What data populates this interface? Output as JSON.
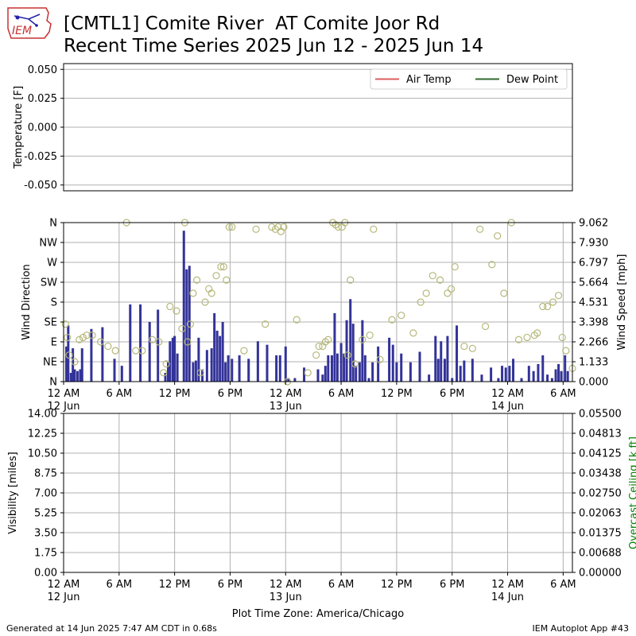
{
  "header": {
    "title_line1": "[CMTL1] Comite River  AT Comite Joor Rd",
    "title_line2": "Recent Time Series 2025 Jun 12 - 2025 Jun 14",
    "logo_text": "IEM"
  },
  "footer": {
    "generated": "Generated at 14 Jun 2025 7:47 AM CDT in 0.68s",
    "app": "IEM Autoplot App #43",
    "timezone": "Plot Time Zone: America/Chicago"
  },
  "colors": {
    "air_temp": "#d95f5f",
    "dew_point": "#2f6b2f",
    "wind_bar": "#333399",
    "wind_dir_marker": "#b5b87a",
    "ceiling_axis": "#008000",
    "grid": "#b0b0b0"
  },
  "chart_data": [
    {
      "type": "line",
      "panel": "temperature",
      "ylabel": "Temperature [F]",
      "ylim": [
        -0.055,
        0.055
      ],
      "yticks": [
        "-0.050",
        "-0.025",
        "0.000",
        "0.025",
        "0.050"
      ],
      "yticks_values": [
        -0.05,
        -0.025,
        0,
        0.025,
        0.05
      ],
      "grid": true,
      "legend": "top-right",
      "series": [
        {
          "name": "Air Temp",
          "values": []
        },
        {
          "name": "Dew Point",
          "values": []
        }
      ]
    },
    {
      "type": "bar",
      "panel": "wind",
      "ylabel": "Wind Direction",
      "y2label": "Wind Speed [mph]",
      "xlim_hours": [
        0,
        55
      ],
      "ylim_left_deg": [
        0,
        360
      ],
      "ylim_right_mph": [
        0,
        9.062
      ],
      "yticks_left": [
        "N",
        "NE",
        "E",
        "SE",
        "S",
        "SW",
        "W",
        "NW",
        "N"
      ],
      "yticks_right": [
        "0.000",
        "1.133",
        "2.266",
        "3.398",
        "4.531",
        "5.664",
        "6.797",
        "7.930",
        "9.062"
      ],
      "grid": true,
      "xticks_hours": [
        0,
        6,
        12,
        18,
        24,
        30,
        36,
        42,
        48,
        54
      ],
      "xtick_labels": [
        "12 AM",
        "6 AM",
        "12 PM",
        "6 PM",
        "12 AM",
        "6 AM",
        "12 PM",
        "6 PM",
        "12 AM",
        "6 AM"
      ],
      "xtick_sublabels": [
        "12 Jun",
        "",
        "",
        "",
        "13 Jun",
        "",
        "",
        "",
        "14 Jun",
        ""
      ],
      "wind_speed": {
        "hours": [
          0.3,
          0.5,
          0.8,
          1.0,
          1.2,
          1.5,
          1.8,
          2.0,
          3.0,
          4.2,
          5.5,
          6.3,
          7.2,
          8.3,
          9.3,
          10.2,
          11.0,
          11.3,
          11.5,
          11.8,
          12.0,
          12.3,
          13.0,
          13.3,
          13.6,
          14.0,
          14.3,
          14.6,
          15.0,
          15.5,
          16.0,
          16.3,
          16.6,
          16.9,
          17.2,
          17.5,
          17.8,
          18.2,
          19.0,
          20.0,
          21.0,
          22.0,
          23.0,
          23.4,
          24.0,
          24.3,
          25.0,
          26.0,
          27.5,
          28.0,
          28.3,
          28.6,
          29.0,
          29.3,
          29.6,
          30.0,
          30.3,
          30.6,
          31.0,
          31.3,
          31.6,
          32.0,
          32.3,
          32.6,
          33.0,
          33.4,
          34.0,
          35.2,
          35.6,
          36.0,
          36.5,
          37.5,
          38.5,
          39.5,
          40.2,
          40.5,
          40.8,
          41.2,
          41.5,
          42.0,
          42.5,
          42.9,
          43.3,
          44.2,
          45.2,
          46.2,
          47.0,
          47.4,
          47.8,
          48.2,
          48.6,
          49.5,
          50.3,
          50.8,
          51.3,
          51.8,
          52.3,
          52.8,
          53.2,
          53.5,
          53.8,
          54.2,
          54.5
        ],
        "mph": [
          2.0,
          3.2,
          0.5,
          1.9,
          0.7,
          0.6,
          0.7,
          1.9,
          3.0,
          3.1,
          1.3,
          0.9,
          4.4,
          4.4,
          3.4,
          4.1,
          0.5,
          1.1,
          2.3,
          2.5,
          2.6,
          1.6,
          8.6,
          6.4,
          6.6,
          1.1,
          1.2,
          2.5,
          0.7,
          1.8,
          1.9,
          3.9,
          2.9,
          2.6,
          3.4,
          1.1,
          1.5,
          1.3,
          1.5,
          1.3,
          2.3,
          2.1,
          1.5,
          1.5,
          2.0,
          0.2,
          0.2,
          0.8,
          0.7,
          0.4,
          0.9,
          1.5,
          1.5,
          3.9,
          1.6,
          2.2,
          1.6,
          3.5,
          4.7,
          3.3,
          0.9,
          1.1,
          3.5,
          1.5,
          0.2,
          1.1,
          2.0,
          2.5,
          2.1,
          1.1,
          1.6,
          1.1,
          1.7,
          0.4,
          2.6,
          1.3,
          2.3,
          1.3,
          2.6,
          0.2,
          3.2,
          0.9,
          1.2,
          1.3,
          0.4,
          0.8,
          0.2,
          0.9,
          0.8,
          0.9,
          1.3,
          0.2,
          0.9,
          0.6,
          1.0,
          1.5,
          0.4,
          0.2,
          0.7,
          1.0,
          0.6,
          1.5,
          0.6
        ]
      },
      "wind_direction": {
        "hours": [
          0.2,
          0.4,
          0.6,
          1.2,
          1.7,
          2.1,
          2.5,
          3.1,
          4.0,
          4.8,
          5.6,
          6.8,
          7.8,
          8.5,
          9.6,
          10.3,
          10.8,
          11.1,
          11.5,
          12.2,
          12.8,
          13.1,
          13.4,
          13.7,
          14.0,
          14.4,
          14.8,
          15.3,
          15.7,
          16.0,
          16.5,
          17.0,
          17.3,
          17.6,
          17.9,
          18.2,
          19.5,
          20.8,
          21.8,
          22.5,
          22.9,
          23.2,
          23.5,
          23.8,
          24.2,
          25.2,
          26.4,
          27.3,
          27.6,
          28.0,
          28.3,
          28.6,
          29.1,
          29.4,
          29.7,
          30.1,
          30.4,
          30.7,
          31.0,
          31.5,
          32.3,
          33.1,
          33.5,
          34.2,
          35.5,
          36.5,
          37.8,
          38.6,
          39.2,
          39.9,
          40.7,
          41.5,
          41.9,
          42.3,
          43.3,
          44.2,
          45.0,
          45.6,
          46.3,
          46.9,
          47.6,
          48.4,
          49.2,
          50.1,
          50.9,
          51.2,
          51.8,
          52.3,
          52.9,
          53.5,
          53.9,
          54.3,
          55.0
        ],
        "deg": [
          130,
          100,
          60,
          45,
          95,
          100,
          105,
          105,
          90,
          80,
          70,
          360,
          70,
          70,
          95,
          90,
          20,
          40,
          170,
          160,
          120,
          360,
          90,
          130,
          200,
          230,
          20,
          180,
          210,
          200,
          240,
          260,
          260,
          230,
          350,
          350,
          70,
          345,
          130,
          350,
          345,
          350,
          340,
          350,
          0,
          140,
          20,
          60,
          80,
          80,
          90,
          95,
          360,
          355,
          350,
          350,
          360,
          60,
          230,
          40,
          95,
          105,
          345,
          50,
          140,
          150,
          110,
          180,
          200,
          240,
          230,
          200,
          210,
          260,
          80,
          75,
          345,
          125,
          265,
          330,
          200,
          360,
          95,
          100,
          105,
          110,
          170,
          170,
          180,
          195,
          100,
          70,
          30
        ]
      }
    },
    {
      "type": "line",
      "panel": "visibility",
      "ylabel": "Visibility [miles]",
      "y2label": "Overcast Ceiling [k ft]",
      "ylim": [
        0,
        14
      ],
      "yticks_left": [
        "0.00",
        "1.75",
        "3.50",
        "5.25",
        "7.00",
        "8.75",
        "10.50",
        "12.25",
        "14.00"
      ],
      "ylim_right": [
        0,
        0.055
      ],
      "yticks_right": [
        "0.00000",
        "0.00688",
        "0.01375",
        "0.02063",
        "0.02750",
        "0.03438",
        "0.04125",
        "0.04813",
        "0.05500"
      ],
      "grid": true,
      "xlabel": "Plot Time Zone: America/Chicago",
      "xtick_labels": [
        "12 AM",
        "6 AM",
        "12 PM",
        "6 PM",
        "12 AM",
        "6 AM",
        "12 PM",
        "6 PM",
        "12 AM",
        "6 AM"
      ],
      "xtick_sublabels": [
        "12 Jun",
        "",
        "",
        "",
        "13 Jun",
        "",
        "",
        "",
        "14 Jun",
        ""
      ],
      "series": []
    }
  ]
}
